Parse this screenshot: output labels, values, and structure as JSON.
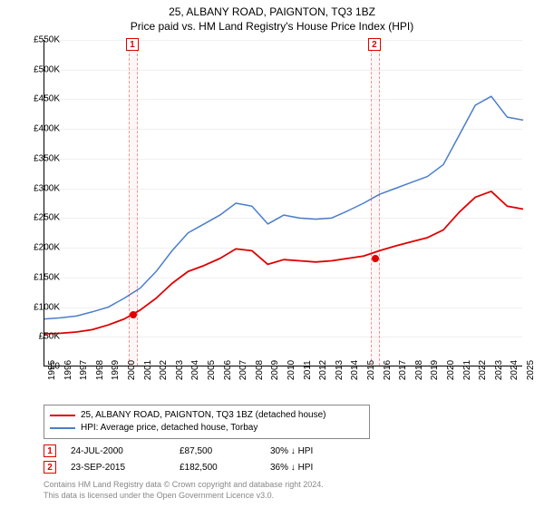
{
  "title": "25, ALBANY ROAD, PAIGNTON, TQ3 1BZ",
  "subtitle": "Price paid vs. HM Land Registry's House Price Index (HPI)",
  "chart": {
    "type": "line",
    "background_color": "#ffffff",
    "grid_color": "rgba(0,0,0,0.06)",
    "x": {
      "min": 1995,
      "max": 2025,
      "ticks": [
        1995,
        1996,
        1997,
        1998,
        1999,
        2000,
        2001,
        2002,
        2003,
        2004,
        2005,
        2006,
        2007,
        2008,
        2009,
        2010,
        2011,
        2012,
        2013,
        2014,
        2015,
        2016,
        2017,
        2018,
        2019,
        2020,
        2021,
        2022,
        2023,
        2024,
        2025
      ]
    },
    "y": {
      "min": 0,
      "max": 550000,
      "step": 50000,
      "tick_labels": [
        "£0",
        "£50K",
        "£100K",
        "£150K",
        "£200K",
        "£250K",
        "£300K",
        "£350K",
        "£400K",
        "£450K",
        "£500K",
        "£550K"
      ]
    },
    "series": [
      {
        "id": "hpi",
        "label": "HPI: Average price, detached house, Torbay",
        "color": "#4a7ecb",
        "width": 1.5,
        "data": [
          [
            1995,
            80000
          ],
          [
            1996,
            82000
          ],
          [
            1997,
            85000
          ],
          [
            1998,
            92000
          ],
          [
            1999,
            100000
          ],
          [
            2000,
            115000
          ],
          [
            2001,
            132000
          ],
          [
            2002,
            160000
          ],
          [
            2003,
            195000
          ],
          [
            2004,
            225000
          ],
          [
            2005,
            240000
          ],
          [
            2006,
            255000
          ],
          [
            2007,
            275000
          ],
          [
            2008,
            270000
          ],
          [
            2009,
            240000
          ],
          [
            2010,
            255000
          ],
          [
            2011,
            250000
          ],
          [
            2012,
            248000
          ],
          [
            2013,
            250000
          ],
          [
            2014,
            262000
          ],
          [
            2015,
            275000
          ],
          [
            2016,
            290000
          ],
          [
            2017,
            300000
          ],
          [
            2018,
            310000
          ],
          [
            2019,
            320000
          ],
          [
            2020,
            340000
          ],
          [
            2021,
            390000
          ],
          [
            2022,
            440000
          ],
          [
            2023,
            455000
          ],
          [
            2024,
            420000
          ],
          [
            2025,
            415000
          ]
        ]
      },
      {
        "id": "property",
        "label": "25, ALBANY ROAD, PAIGNTON, TQ3 1BZ (detached house)",
        "color": "#e00000",
        "width": 1.8,
        "data": [
          [
            1995,
            55000
          ],
          [
            1996,
            56000
          ],
          [
            1997,
            58000
          ],
          [
            1998,
            62000
          ],
          [
            1999,
            70000
          ],
          [
            2000,
            80000
          ],
          [
            2001,
            95000
          ],
          [
            2002,
            115000
          ],
          [
            2003,
            140000
          ],
          [
            2004,
            160000
          ],
          [
            2005,
            170000
          ],
          [
            2006,
            182000
          ],
          [
            2007,
            198000
          ],
          [
            2008,
            195000
          ],
          [
            2009,
            172000
          ],
          [
            2010,
            180000
          ],
          [
            2011,
            178000
          ],
          [
            2012,
            176000
          ],
          [
            2013,
            178000
          ],
          [
            2014,
            182000
          ],
          [
            2015,
            186000
          ],
          [
            2016,
            195000
          ],
          [
            2017,
            203000
          ],
          [
            2018,
            210000
          ],
          [
            2019,
            217000
          ],
          [
            2020,
            230000
          ],
          [
            2021,
            260000
          ],
          [
            2022,
            285000
          ],
          [
            2023,
            295000
          ],
          [
            2024,
            270000
          ],
          [
            2025,
            265000
          ]
        ]
      }
    ],
    "markers": [
      {
        "n": "1",
        "year": 2000.56,
        "price": 87500
      },
      {
        "n": "2",
        "year": 2015.73,
        "price": 182500
      }
    ],
    "marker_band_width_years": 0.6,
    "marker_band_color": "rgba(230,0,0,0.03)",
    "marker_border_color": "#e00000"
  },
  "legend": {
    "items": [
      {
        "color": "#e00000",
        "label": "25, ALBANY ROAD, PAIGNTON, TQ3 1BZ (detached house)"
      },
      {
        "color": "#4a7ecb",
        "label": "HPI: Average price, detached house, Torbay"
      }
    ]
  },
  "sales": [
    {
      "n": "1",
      "date": "24-JUL-2000",
      "price": "£87,500",
      "diff": "30% ↓ HPI"
    },
    {
      "n": "2",
      "date": "23-SEP-2015",
      "price": "£182,500",
      "diff": "36% ↓ HPI"
    }
  ],
  "copyright": {
    "line1": "Contains HM Land Registry data © Crown copyright and database right 2024.",
    "line2": "This data is licensed under the Open Government Licence v3.0."
  }
}
